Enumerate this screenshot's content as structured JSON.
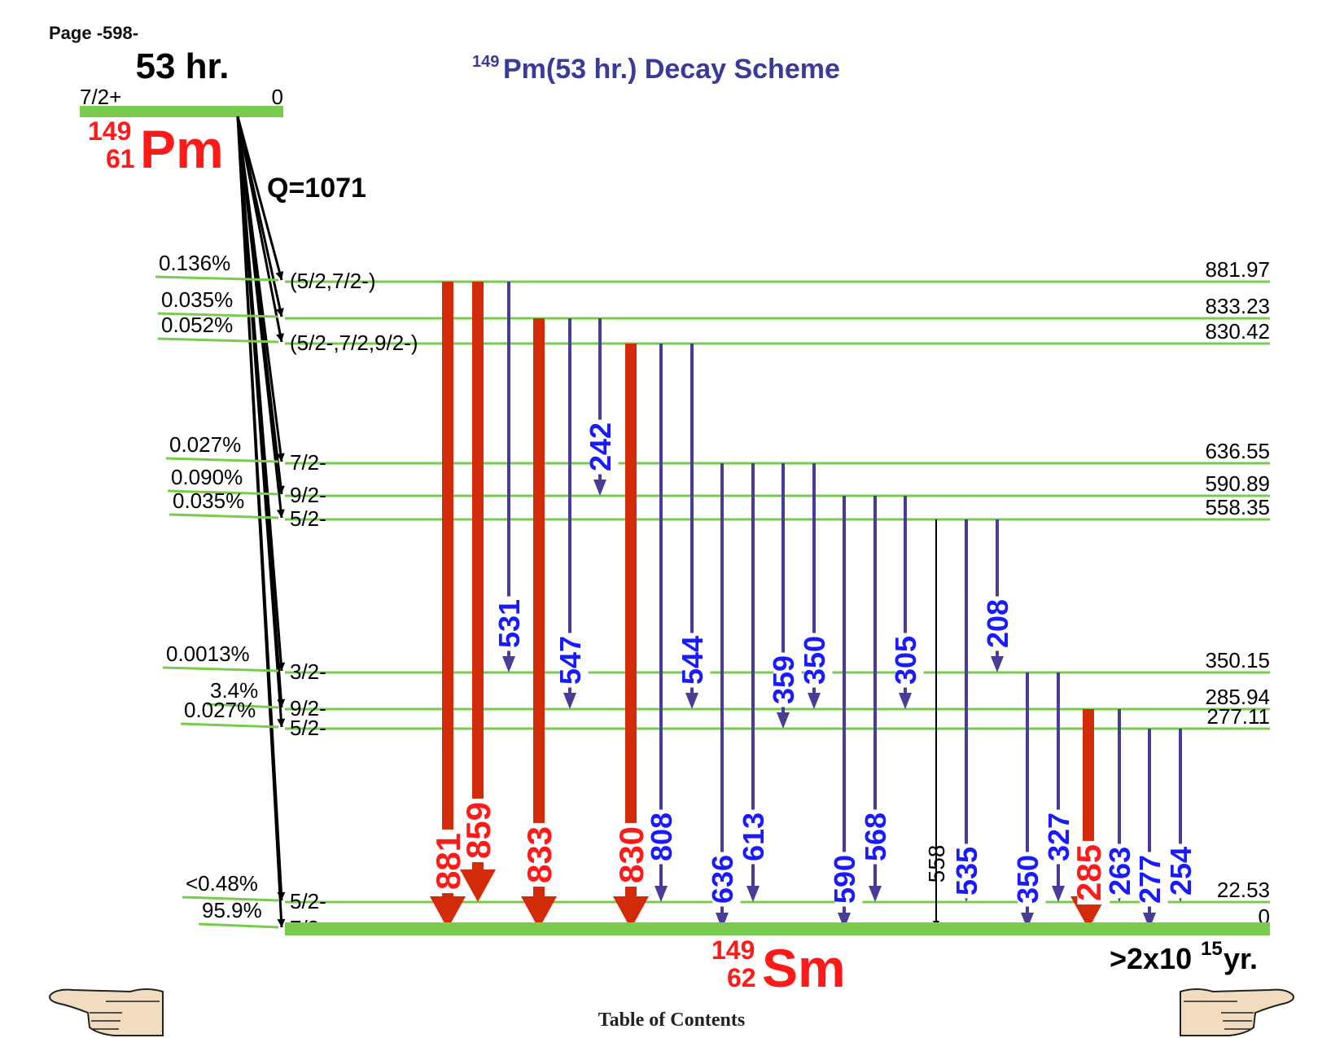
{
  "page_label": "Page -598-",
  "title": {
    "mass": "149",
    "rest": "Pm(53 hr.) Decay Scheme"
  },
  "parent": {
    "halflife": "53 hr.",
    "spin": "7/2+",
    "energy": "0",
    "mass": "149",
    "z": "61",
    "symbol": "Pm",
    "q_value": "Q=1071"
  },
  "daughter": {
    "mass": "149",
    "z": "62",
    "symbol": "Sm",
    "halflife_main": ">2x10",
    "halflife_exp": "15",
    "halflife_unit": " yr."
  },
  "levels": [
    {
      "energy": "881.97",
      "spin": "(5/2,7/2-)",
      "branch": "0.136%"
    },
    {
      "energy": "833.23",
      "spin": "",
      "branch": "0.035%"
    },
    {
      "energy": "830.42",
      "spin": "(5/2-,7/2,9/2-)",
      "branch": "0.052%"
    },
    {
      "energy": "636.55",
      "spin": "7/2-",
      "branch": "0.027%"
    },
    {
      "energy": "590.89",
      "spin": "9/2-",
      "branch": "0.090%"
    },
    {
      "energy": "558.35",
      "spin": "5/2-",
      "branch": "0.035%"
    },
    {
      "energy": "350.15",
      "spin": "3/2-",
      "branch": "0.0013%"
    },
    {
      "energy": "285.94",
      "spin": "9/2-",
      "branch": "3.4%"
    },
    {
      "energy": "277.11",
      "spin": "5/2-",
      "branch": "0.027%"
    },
    {
      "energy": "22.53",
      "spin": "5/2-",
      "branch": "<0.48%"
    },
    {
      "energy": "0",
      "spin": "7/2-",
      "branch": "95.9%"
    }
  ],
  "transitions": [
    {
      "label": "881",
      "from": 0,
      "to": 10,
      "color": "red"
    },
    {
      "label": "859",
      "from": 0,
      "to": 9,
      "color": "red"
    },
    {
      "label": "531",
      "from": 0,
      "to": 6,
      "color": "blue"
    },
    {
      "label": "833",
      "from": 1,
      "to": 10,
      "color": "red"
    },
    {
      "label": "547",
      "from": 1,
      "to": 7,
      "color": "blue"
    },
    {
      "label": "242",
      "from": 1,
      "to": 4,
      "color": "blue"
    },
    {
      "label": "830",
      "from": 2,
      "to": 10,
      "color": "red"
    },
    {
      "label": "808",
      "from": 2,
      "to": 9,
      "color": "blue"
    },
    {
      "label": "544",
      "from": 2,
      "to": 7,
      "color": "blue"
    },
    {
      "label": "636",
      "from": 3,
      "to": 10,
      "color": "blue"
    },
    {
      "label": "613",
      "from": 3,
      "to": 9,
      "color": "blue"
    },
    {
      "label": "359",
      "from": 3,
      "to": 8,
      "color": "blue"
    },
    {
      "label": "350",
      "from": 3,
      "to": 7,
      "color": "blue"
    },
    {
      "label": "590",
      "from": 4,
      "to": 10,
      "color": "blue"
    },
    {
      "label": "568",
      "from": 4,
      "to": 9,
      "color": "blue"
    },
    {
      "label": "305",
      "from": 4,
      "to": 7,
      "color": "blue"
    },
    {
      "label": "558",
      "from": 5,
      "to": 10,
      "color": "black"
    },
    {
      "label": "535",
      "from": 5,
      "to": 9,
      "color": "blue"
    },
    {
      "label": "208",
      "from": 5,
      "to": 6,
      "color": "blue"
    },
    {
      "label": "350",
      "from": 6,
      "to": 10,
      "color": "blue"
    },
    {
      "label": "327",
      "from": 6,
      "to": 9,
      "color": "blue"
    },
    {
      "label": "285",
      "from": 7,
      "to": 10,
      "color": "red"
    },
    {
      "label": "263",
      "from": 7,
      "to": 9,
      "color": "blue"
    },
    {
      "label": "277",
      "from": 8,
      "to": 10,
      "color": "blue"
    },
    {
      "label": "254",
      "from": 8,
      "to": 9,
      "color": "blue"
    }
  ],
  "footer": {
    "toc": "Table of Contents"
  },
  "colors": {
    "level": "#77cc4d",
    "red": "#d22b0a",
    "red_text": "#ff1a1a",
    "blue": "#4b3a96",
    "blue_text": "#1a1aff",
    "title": "#3a3a99",
    "nuclide": "#ff1a1a"
  },
  "icons": {
    "prev": "hand-pointing-left-icon",
    "next": "hand-pointing-right-icon"
  }
}
